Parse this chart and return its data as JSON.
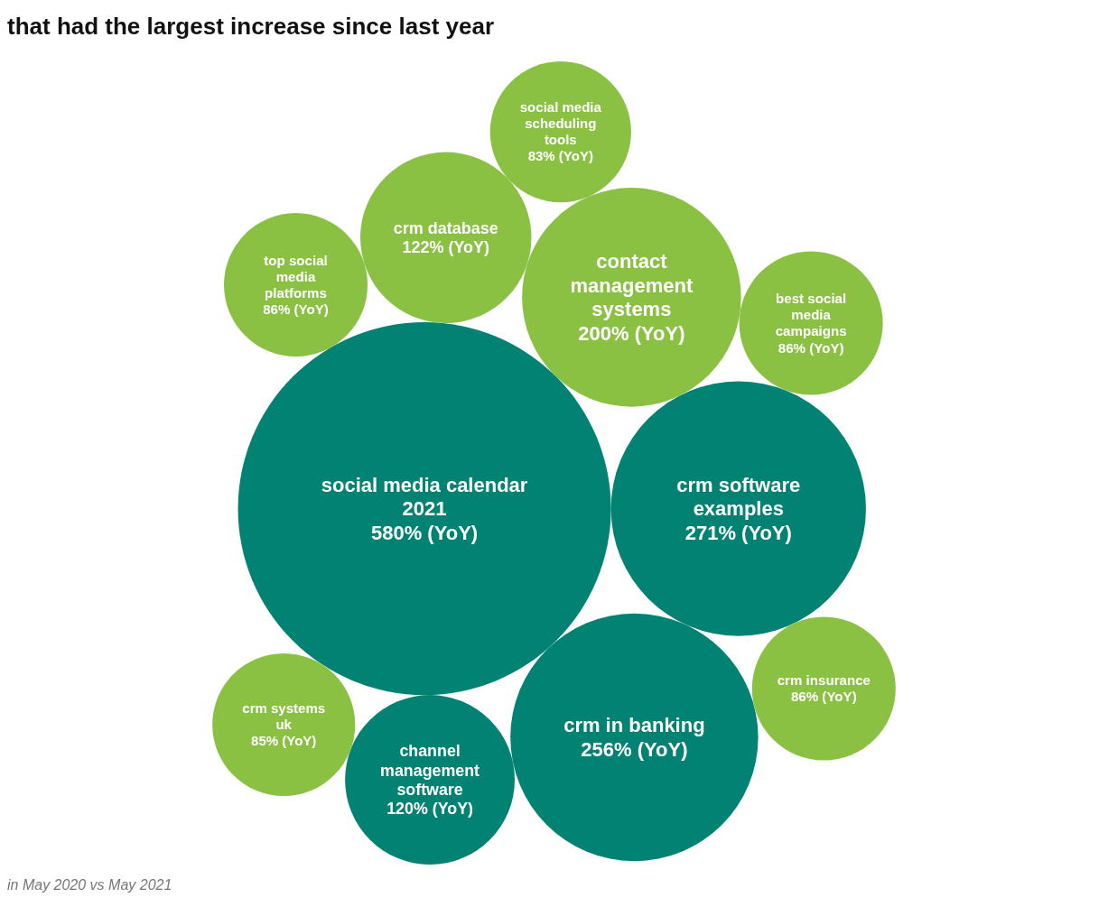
{
  "chart_data": {
    "type": "other",
    "title": "that had the largest increase since last year",
    "categories": [
      "social media calendar 2021",
      "crm software examples",
      "crm in banking",
      "contact management systems",
      "crm database",
      "channel management software",
      "best social media campaigns",
      "crm insurance",
      "top social media platforms",
      "crm systems uk",
      "social media scheduling tools"
    ],
    "values": [
      580,
      271,
      256,
      200,
      122,
      120,
      86,
      86,
      86,
      85,
      83
    ],
    "value_labels": [
      "580% (YoY)",
      "271% (YoY)",
      "256% (YoY)",
      "200% (YoY)",
      "122% (YoY)",
      "120% (YoY)",
      "86% (YoY)",
      "86% (YoY)",
      "86% (YoY)",
      "85% (YoY)",
      "83% (YoY)"
    ],
    "colors": [
      "#028272",
      "#028272",
      "#028272",
      "#8ac142",
      "#8ac142",
      "#028272",
      "#8ac142",
      "#8ac142",
      "#8ac142",
      "#8ac142",
      "#8ac142"
    ],
    "annotations": [
      "in May 2020 vs May 2021"
    ]
  }
}
